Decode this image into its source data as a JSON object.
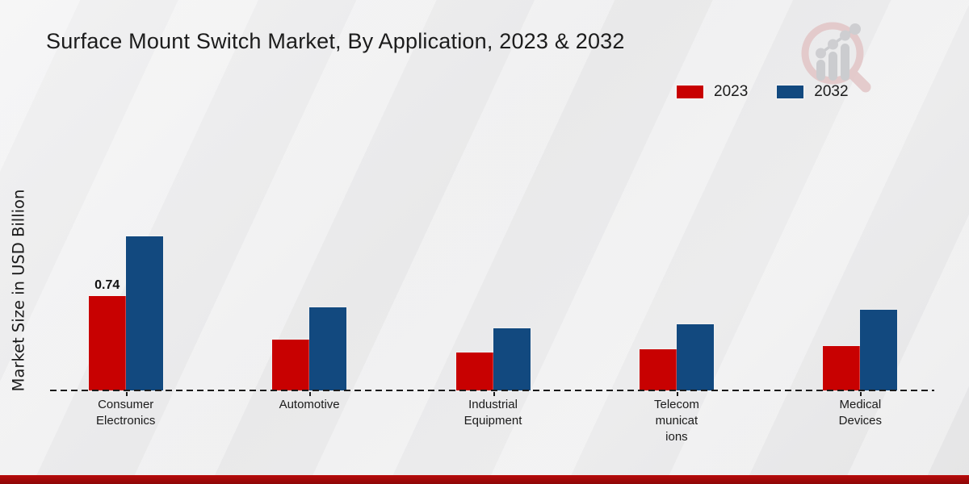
{
  "title": "Surface Mount Switch Market, By Application, 2023 & 2032",
  "y_axis": {
    "label": "Market Size in USD Billion"
  },
  "legend": {
    "position": "top-right"
  },
  "chart_data": {
    "type": "bar",
    "title": "Surface Mount Switch Market, By Application, 2023 & 2032",
    "ylabel": "Market Size in USD Billion",
    "xlabel": "",
    "categories": [
      "Consumer\nElectronics",
      "Automotive",
      "Industrial\nEquipment",
      "Telecom\nmunicat\nions",
      "Medical\nDevices"
    ],
    "series": [
      {
        "name": "2023",
        "color": "#c80101",
        "values": [
          0.74,
          0.4,
          0.3,
          0.32,
          0.35
        ]
      },
      {
        "name": "2032",
        "color": "#12497f",
        "values": [
          1.21,
          0.65,
          0.49,
          0.52,
          0.63
        ]
      }
    ],
    "data_labels": [
      {
        "series": "2023",
        "category": "Consumer\nElectronics",
        "text": "0.74"
      }
    ],
    "ylim": [
      0,
      1.4
    ],
    "grid": false,
    "legend_position": "top-right",
    "baseline_style": "dashed"
  },
  "footer": {
    "bar_color": "#b80b0b"
  },
  "icons": {
    "watermark": "magnifier-bar-chart-logo"
  }
}
